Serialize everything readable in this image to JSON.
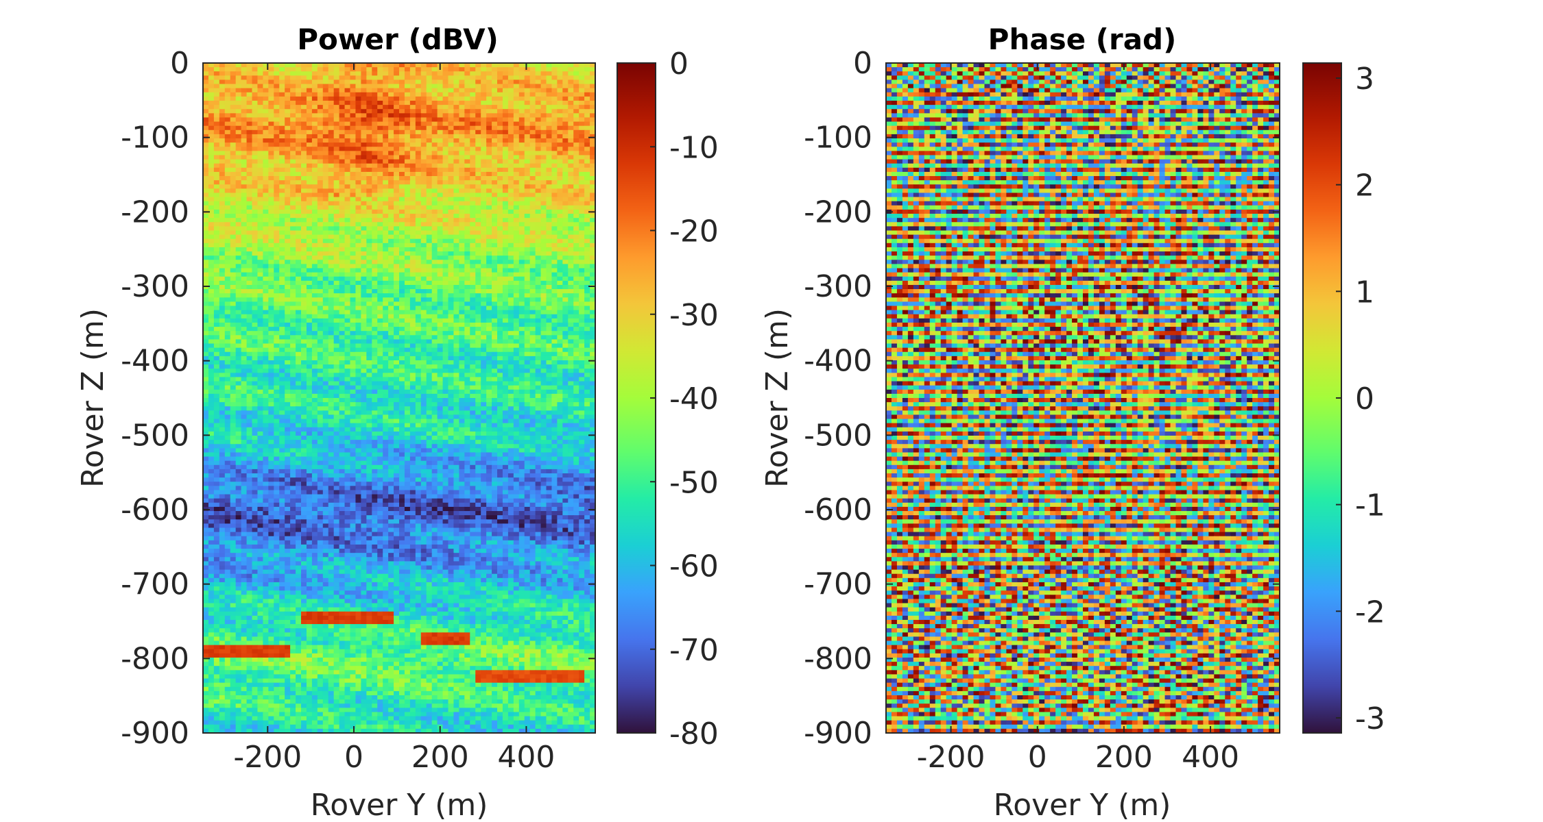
{
  "chart_data": [
    {
      "type": "heatmap",
      "title": "Power (dBV)",
      "xlabel": "Rover Y (m)",
      "ylabel": "Rover Z (m)",
      "xlim": [
        -350,
        560
      ],
      "ylim": [
        -900,
        0
      ],
      "x_ticks": [
        "-200",
        "0",
        "200",
        "400"
      ],
      "y_ticks": [
        "0",
        "-100",
        "-200",
        "-300",
        "-400",
        "-500",
        "-600",
        "-700",
        "-800",
        "-900"
      ],
      "colormap": "turbo",
      "colorbar": {
        "min": -80,
        "max": 0,
        "ticks": [
          "0",
          "-10",
          "-20",
          "-30",
          "-40",
          "-50",
          "-60",
          "-70",
          "-80"
        ]
      },
      "depth_profile": [
        {
          "z": -20,
          "value": -30
        },
        {
          "z": -80,
          "value": -22
        },
        {
          "z": -200,
          "value": -35
        },
        {
          "z": -300,
          "value": -45
        },
        {
          "z": -400,
          "value": -50
        },
        {
          "z": -500,
          "value": -55
        },
        {
          "z": -600,
          "value": -72
        },
        {
          "z": -680,
          "value": -62
        },
        {
          "z": -800,
          "value": -45
        },
        {
          "z": -900,
          "value": -55
        }
      ],
      "reflectors": [
        {
          "y_start": -350,
          "y_end": -150,
          "z": -790,
          "value": -12
        },
        {
          "y_start": -120,
          "y_end": 90,
          "z": -745,
          "value": -12
        },
        {
          "y_start": 150,
          "y_end": 270,
          "z": -775,
          "value": -12
        },
        {
          "y_start": 280,
          "y_end": 530,
          "z": -825,
          "value": -14
        }
      ]
    },
    {
      "type": "heatmap",
      "title": "Phase (rad)",
      "xlabel": "Rover Y (m)",
      "ylabel": "Rover Z (m)",
      "xlim": [
        -350,
        560
      ],
      "ylim": [
        -900,
        0
      ],
      "x_ticks": [
        "-200",
        "0",
        "200",
        "400"
      ],
      "y_ticks": [
        "0",
        "-100",
        "-200",
        "-300",
        "-400",
        "-500",
        "-600",
        "-700",
        "-800",
        "-900"
      ],
      "colormap": "turbo",
      "colorbar": {
        "min": -3.1416,
        "max": 3.1416,
        "ticks": [
          "3",
          "2",
          "1",
          "0",
          "-1",
          "-2",
          "-3"
        ]
      },
      "pattern": "wrapped phase, mostly horizontal banding with chevron fringes around -700 to -800 m"
    }
  ]
}
